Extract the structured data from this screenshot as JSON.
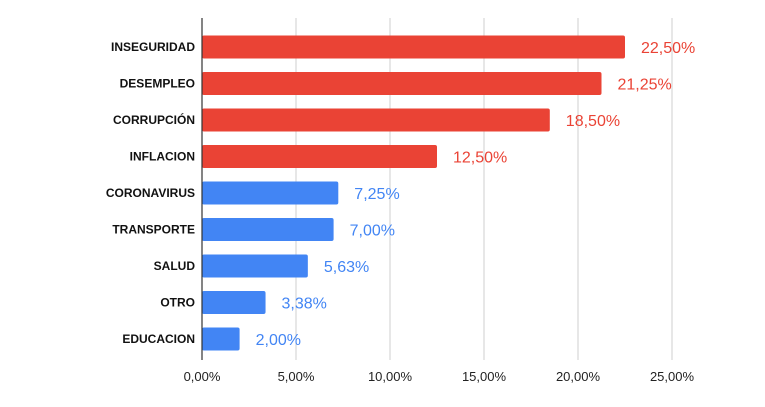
{
  "chart_data": {
    "type": "bar",
    "orientation": "horizontal",
    "categories": [
      "INSEGURIDAD",
      "DESEMPLEO",
      "CORRUPCIÓN",
      "INFLACION",
      "CORONAVIRUS",
      "TRANSPORTE",
      "SALUD",
      "OTRO",
      "EDUCACION"
    ],
    "values": [
      22.5,
      21.25,
      18.5,
      12.5,
      7.25,
      7.0,
      5.63,
      3.38,
      2.0
    ],
    "value_labels": [
      "22,50%",
      "21,25%",
      "18,50%",
      "12,50%",
      "7,25%",
      "7,00%",
      "5,63%",
      "3,38%",
      "2,00%"
    ],
    "colors": [
      "#ea4335",
      "#ea4335",
      "#ea4335",
      "#ea4335",
      "#4285f4",
      "#4285f4",
      "#4285f4",
      "#4285f4",
      "#4285f4"
    ],
    "x_ticks": [
      0,
      5,
      10,
      15,
      20,
      25
    ],
    "x_tick_labels": [
      "0,00%",
      "5,00%",
      "10,00%",
      "15,00%",
      "20,00%",
      "25,00%"
    ],
    "xlim": [
      0,
      25
    ],
    "grid": true,
    "legend": "none"
  }
}
